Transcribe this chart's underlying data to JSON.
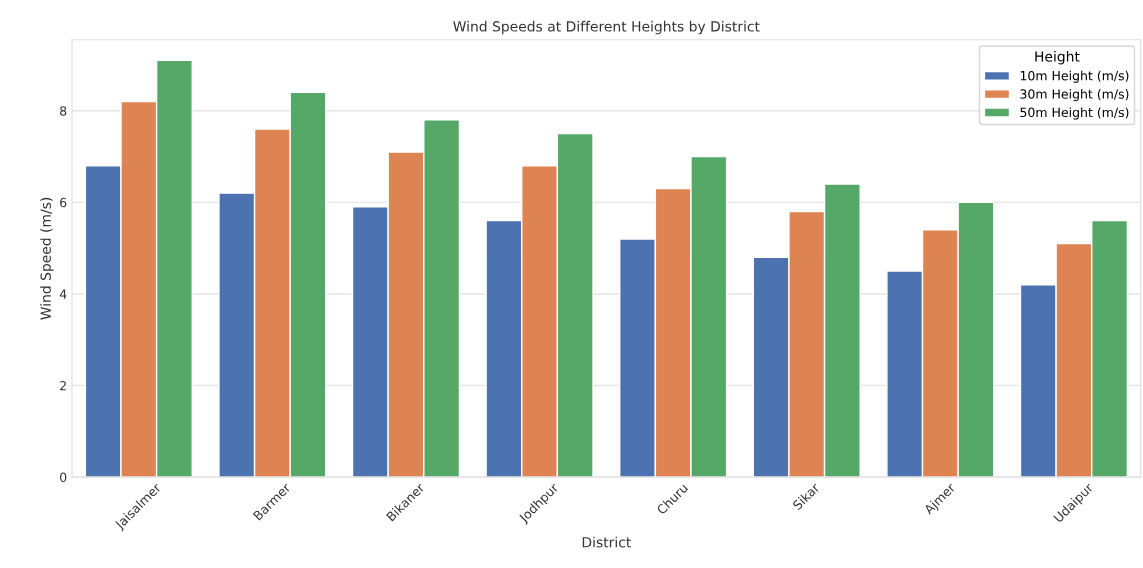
{
  "chart_data": {
    "type": "bar",
    "title": "Wind Speeds at Different Heights by District",
    "xlabel": "District",
    "ylabel": "Wind Speed (m/s)",
    "legend_title": "Height",
    "categories": [
      "Jaisalmer",
      "Barmer",
      "Bikaner",
      "Jodhpur",
      "Churu",
      "Sikar",
      "Ajmer",
      "Udaipur"
    ],
    "series": [
      {
        "name": "10m Height (m/s)",
        "color": "#4c72b0",
        "values": [
          6.8,
          6.2,
          5.9,
          5.6,
          5.2,
          4.8,
          4.5,
          4.2
        ]
      },
      {
        "name": "30m Height (m/s)",
        "color": "#dd8452",
        "values": [
          8.2,
          7.6,
          7.1,
          6.8,
          6.3,
          5.8,
          5.4,
          5.1
        ]
      },
      {
        "name": "50m Height (m/s)",
        "color": "#55a868",
        "values": [
          9.1,
          8.4,
          7.8,
          7.5,
          7.0,
          6.4,
          6.0,
          5.6
        ]
      }
    ],
    "ylim": [
      0,
      9.55
    ],
    "yticks": [
      0,
      2,
      4,
      6,
      8
    ],
    "grid": "y",
    "legend": "top right"
  }
}
